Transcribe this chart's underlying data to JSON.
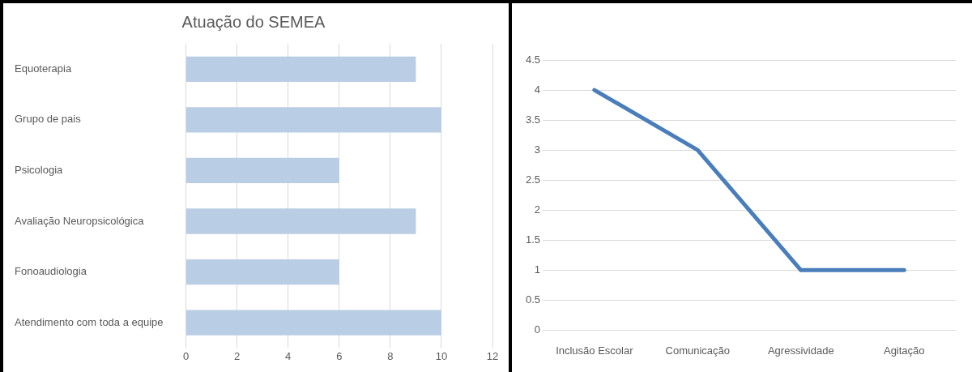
{
  "chart_data": [
    {
      "type": "bar",
      "title": "Atuação do SEMEA",
      "orientation": "horizontal",
      "categories": [
        "Equoterapia",
        "Grupo de pais",
        "Psicologia",
        "Avaliação Neuropsicológica",
        "Fonoaudiologia",
        "Atendimento com toda a equipe"
      ],
      "values": [
        9,
        10,
        6,
        9,
        6,
        10
      ],
      "color": "#b9cde5",
      "xlim": [
        0,
        12
      ],
      "xticks": [
        0,
        2,
        4,
        6,
        8,
        10,
        12
      ],
      "grid": "x"
    },
    {
      "type": "line",
      "categories": [
        "Inclusão Escolar",
        "Comunicação",
        "Agressividade",
        "Agitação"
      ],
      "values": [
        4,
        3,
        1,
        1
      ],
      "color": "#4a7ebb",
      "ylim": [
        0,
        4.5
      ],
      "yticks": [
        0,
        0.5,
        1,
        1.5,
        2,
        2.5,
        3,
        3.5,
        4,
        4.5
      ],
      "grid": "y"
    }
  ]
}
